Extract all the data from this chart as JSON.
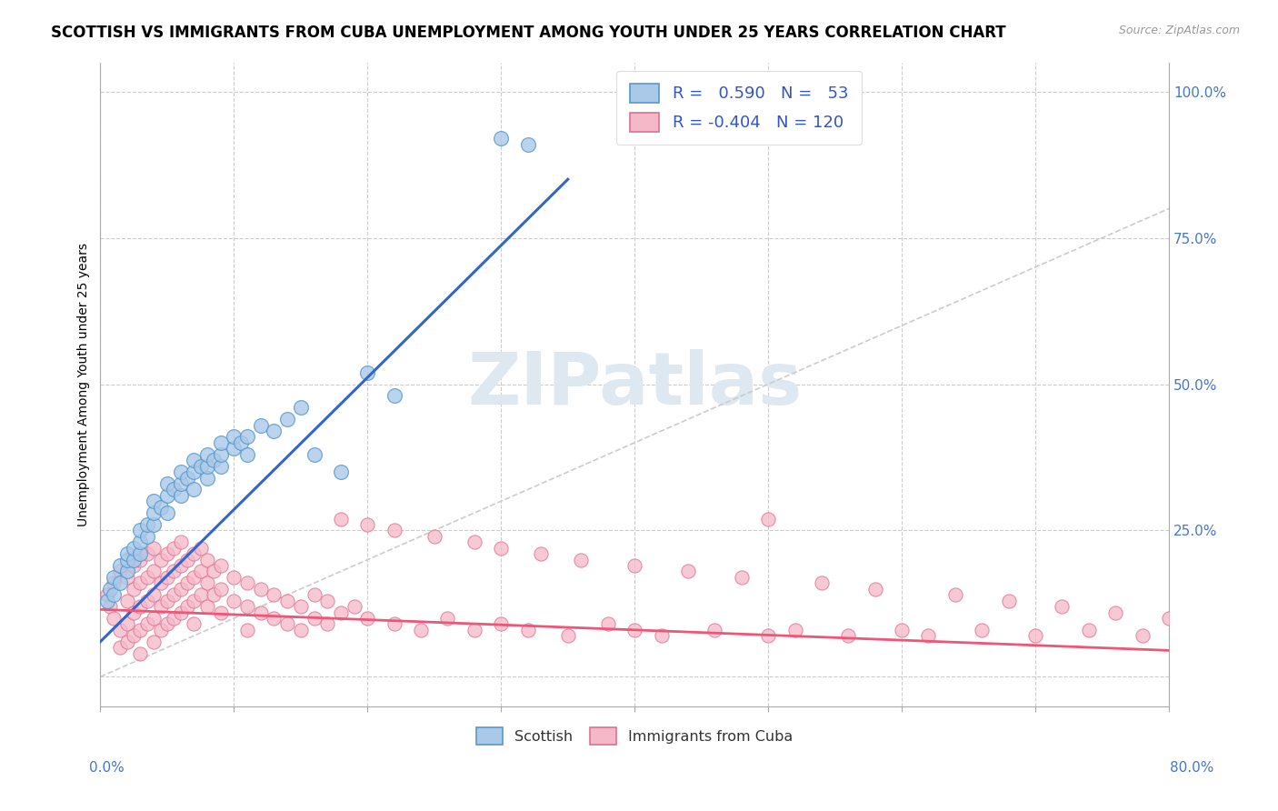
{
  "title": "SCOTTISH VS IMMIGRANTS FROM CUBA UNEMPLOYMENT AMONG YOUTH UNDER 25 YEARS CORRELATION CHART",
  "source": "Source: ZipAtlas.com",
  "ylabel": "Unemployment Among Youth under 25 years",
  "xlim": [
    0.0,
    0.8
  ],
  "ylim": [
    -0.05,
    1.05
  ],
  "scatter_blue_color": "#aac8e8",
  "scatter_blue_edge": "#5599cc",
  "scatter_pink_color": "#f5b8c8",
  "scatter_pink_edge": "#e07090",
  "line_blue_color": "#3366cc",
  "line_pink_color": "#ee5577",
  "diagonal_color": "#cccccc",
  "watermark_color": "#dde8f0",
  "background_color": "#ffffff",
  "title_fontsize": 12,
  "label_fontsize": 10,
  "tick_fontsize": 11,
  "blue_points": [
    [
      0.005,
      0.13
    ],
    [
      0.007,
      0.15
    ],
    [
      0.01,
      0.14
    ],
    [
      0.01,
      0.17
    ],
    [
      0.015,
      0.16
    ],
    [
      0.015,
      0.19
    ],
    [
      0.02,
      0.18
    ],
    [
      0.02,
      0.2
    ],
    [
      0.02,
      0.21
    ],
    [
      0.025,
      0.2
    ],
    [
      0.025,
      0.22
    ],
    [
      0.03,
      0.21
    ],
    [
      0.03,
      0.23
    ],
    [
      0.03,
      0.25
    ],
    [
      0.035,
      0.24
    ],
    [
      0.035,
      0.26
    ],
    [
      0.04,
      0.26
    ],
    [
      0.04,
      0.28
    ],
    [
      0.04,
      0.3
    ],
    [
      0.045,
      0.29
    ],
    [
      0.05,
      0.28
    ],
    [
      0.05,
      0.31
    ],
    [
      0.05,
      0.33
    ],
    [
      0.055,
      0.32
    ],
    [
      0.06,
      0.31
    ],
    [
      0.06,
      0.33
    ],
    [
      0.06,
      0.35
    ],
    [
      0.065,
      0.34
    ],
    [
      0.07,
      0.32
    ],
    [
      0.07,
      0.35
    ],
    [
      0.07,
      0.37
    ],
    [
      0.075,
      0.36
    ],
    [
      0.08,
      0.34
    ],
    [
      0.08,
      0.36
    ],
    [
      0.08,
      0.38
    ],
    [
      0.085,
      0.37
    ],
    [
      0.09,
      0.36
    ],
    [
      0.09,
      0.38
    ],
    [
      0.09,
      0.4
    ],
    [
      0.1,
      0.39
    ],
    [
      0.1,
      0.41
    ],
    [
      0.105,
      0.4
    ],
    [
      0.11,
      0.38
    ],
    [
      0.11,
      0.41
    ],
    [
      0.12,
      0.43
    ],
    [
      0.13,
      0.42
    ],
    [
      0.14,
      0.44
    ],
    [
      0.15,
      0.46
    ],
    [
      0.16,
      0.38
    ],
    [
      0.18,
      0.35
    ],
    [
      0.2,
      0.52
    ],
    [
      0.22,
      0.48
    ],
    [
      0.3,
      0.92
    ],
    [
      0.32,
      0.91
    ]
  ],
  "pink_points": [
    [
      0.005,
      0.14
    ],
    [
      0.007,
      0.12
    ],
    [
      0.01,
      0.16
    ],
    [
      0.01,
      0.1
    ],
    [
      0.015,
      0.18
    ],
    [
      0.015,
      0.08
    ],
    [
      0.015,
      0.05
    ],
    [
      0.02,
      0.17
    ],
    [
      0.02,
      0.13
    ],
    [
      0.02,
      0.09
    ],
    [
      0.02,
      0.06
    ],
    [
      0.025,
      0.19
    ],
    [
      0.025,
      0.15
    ],
    [
      0.025,
      0.11
    ],
    [
      0.025,
      0.07
    ],
    [
      0.03,
      0.2
    ],
    [
      0.03,
      0.16
    ],
    [
      0.03,
      0.12
    ],
    [
      0.03,
      0.08
    ],
    [
      0.03,
      0.04
    ],
    [
      0.035,
      0.21
    ],
    [
      0.035,
      0.17
    ],
    [
      0.035,
      0.13
    ],
    [
      0.035,
      0.09
    ],
    [
      0.04,
      0.22
    ],
    [
      0.04,
      0.18
    ],
    [
      0.04,
      0.14
    ],
    [
      0.04,
      0.1
    ],
    [
      0.04,
      0.06
    ],
    [
      0.045,
      0.2
    ],
    [
      0.045,
      0.16
    ],
    [
      0.045,
      0.12
    ],
    [
      0.045,
      0.08
    ],
    [
      0.05,
      0.21
    ],
    [
      0.05,
      0.17
    ],
    [
      0.05,
      0.13
    ],
    [
      0.05,
      0.09
    ],
    [
      0.055,
      0.22
    ],
    [
      0.055,
      0.18
    ],
    [
      0.055,
      0.14
    ],
    [
      0.055,
      0.1
    ],
    [
      0.06,
      0.23
    ],
    [
      0.06,
      0.19
    ],
    [
      0.06,
      0.15
    ],
    [
      0.06,
      0.11
    ],
    [
      0.065,
      0.2
    ],
    [
      0.065,
      0.16
    ],
    [
      0.065,
      0.12
    ],
    [
      0.07,
      0.21
    ],
    [
      0.07,
      0.17
    ],
    [
      0.07,
      0.13
    ],
    [
      0.07,
      0.09
    ],
    [
      0.075,
      0.22
    ],
    [
      0.075,
      0.18
    ],
    [
      0.075,
      0.14
    ],
    [
      0.08,
      0.2
    ],
    [
      0.08,
      0.16
    ],
    [
      0.08,
      0.12
    ],
    [
      0.085,
      0.18
    ],
    [
      0.085,
      0.14
    ],
    [
      0.09,
      0.19
    ],
    [
      0.09,
      0.15
    ],
    [
      0.09,
      0.11
    ],
    [
      0.1,
      0.17
    ],
    [
      0.1,
      0.13
    ],
    [
      0.11,
      0.16
    ],
    [
      0.11,
      0.12
    ],
    [
      0.11,
      0.08
    ],
    [
      0.12,
      0.15
    ],
    [
      0.12,
      0.11
    ],
    [
      0.13,
      0.14
    ],
    [
      0.13,
      0.1
    ],
    [
      0.14,
      0.13
    ],
    [
      0.14,
      0.09
    ],
    [
      0.15,
      0.12
    ],
    [
      0.15,
      0.08
    ],
    [
      0.16,
      0.14
    ],
    [
      0.16,
      0.1
    ],
    [
      0.17,
      0.13
    ],
    [
      0.17,
      0.09
    ],
    [
      0.18,
      0.27
    ],
    [
      0.18,
      0.11
    ],
    [
      0.19,
      0.12
    ],
    [
      0.2,
      0.26
    ],
    [
      0.2,
      0.1
    ],
    [
      0.22,
      0.25
    ],
    [
      0.22,
      0.09
    ],
    [
      0.24,
      0.08
    ],
    [
      0.25,
      0.24
    ],
    [
      0.26,
      0.1
    ],
    [
      0.28,
      0.23
    ],
    [
      0.28,
      0.08
    ],
    [
      0.3,
      0.22
    ],
    [
      0.3,
      0.09
    ],
    [
      0.32,
      0.08
    ],
    [
      0.33,
      0.21
    ],
    [
      0.35,
      0.07
    ],
    [
      0.36,
      0.2
    ],
    [
      0.38,
      0.09
    ],
    [
      0.4,
      0.08
    ],
    [
      0.4,
      0.19
    ],
    [
      0.42,
      0.07
    ],
    [
      0.44,
      0.18
    ],
    [
      0.46,
      0.08
    ],
    [
      0.48,
      0.17
    ],
    [
      0.5,
      0.27
    ],
    [
      0.5,
      0.07
    ],
    [
      0.52,
      0.08
    ],
    [
      0.54,
      0.16
    ],
    [
      0.56,
      0.07
    ],
    [
      0.58,
      0.15
    ],
    [
      0.6,
      0.08
    ],
    [
      0.62,
      0.07
    ],
    [
      0.64,
      0.14
    ],
    [
      0.66,
      0.08
    ],
    [
      0.68,
      0.13
    ],
    [
      0.7,
      0.07
    ],
    [
      0.72,
      0.12
    ],
    [
      0.74,
      0.08
    ],
    [
      0.76,
      0.11
    ],
    [
      0.78,
      0.07
    ],
    [
      0.8,
      0.1
    ]
  ],
  "blue_line": [
    [
      0.0,
      0.06
    ],
    [
      0.35,
      0.85
    ]
  ],
  "pink_line": [
    [
      0.0,
      0.115
    ],
    [
      0.8,
      0.045
    ]
  ]
}
